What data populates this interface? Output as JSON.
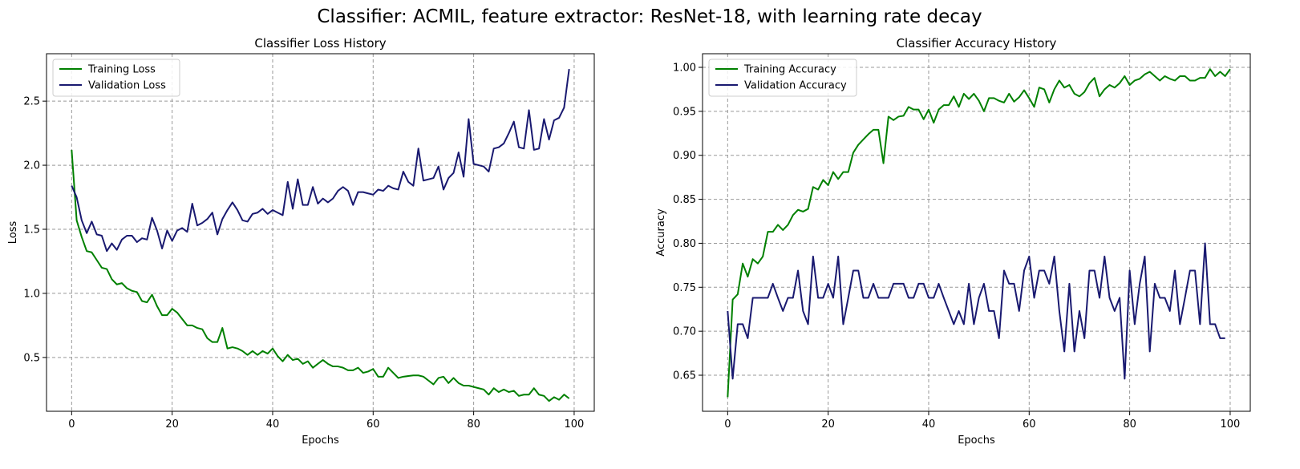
{
  "figure": {
    "suptitle": "Classifier: ACMIL, feature extractor: ResNet-18, with learning rate decay"
  },
  "colors": {
    "training": "#008000",
    "validation": "#191970",
    "grid": "#999999"
  },
  "chart_data": [
    {
      "type": "line",
      "title": "Classifier Loss History",
      "xlabel": "Epochs",
      "ylabel": "Loss",
      "xlim": [
        -5,
        104
      ],
      "ylim": [
        0.08,
        2.87
      ],
      "xticks": [
        0,
        20,
        40,
        60,
        80,
        100
      ],
      "yticks": [
        0.5,
        1.0,
        1.5,
        2.0,
        2.5
      ],
      "ytick_labels": [
        "0.5",
        "1.0",
        "1.5",
        "2.0",
        "2.5"
      ],
      "grid": true,
      "legend_position": "upper left",
      "series": [
        {
          "name": "Training Loss",
          "color": "#008000",
          "values": [
            2.12,
            1.57,
            1.44,
            1.33,
            1.32,
            1.26,
            1.2,
            1.19,
            1.11,
            1.07,
            1.08,
            1.04,
            1.02,
            1.01,
            0.94,
            0.93,
            0.99,
            0.9,
            0.83,
            0.83,
            0.88,
            0.85,
            0.8,
            0.75,
            0.75,
            0.73,
            0.72,
            0.65,
            0.62,
            0.62,
            0.73,
            0.57,
            0.58,
            0.57,
            0.55,
            0.52,
            0.55,
            0.52,
            0.55,
            0.53,
            0.57,
            0.51,
            0.47,
            0.52,
            0.48,
            0.49,
            0.45,
            0.47,
            0.42,
            0.45,
            0.48,
            0.45,
            0.43,
            0.43,
            0.42,
            0.4,
            0.4,
            0.42,
            0.38,
            0.39,
            0.41,
            0.35,
            0.35,
            0.42,
            0.38,
            0.34,
            0.35,
            0.355,
            0.36,
            0.36,
            0.35,
            0.32,
            0.29,
            0.34,
            0.35,
            0.3,
            0.34,
            0.3,
            0.28,
            0.28,
            0.27,
            0.26,
            0.25,
            0.21,
            0.26,
            0.23,
            0.25,
            0.23,
            0.24,
            0.2,
            0.21,
            0.21,
            0.26,
            0.21,
            0.2,
            0.16,
            0.19,
            0.17,
            0.21,
            0.18
          ]
        },
        {
          "name": "Validation Loss",
          "color": "#191970",
          "values": [
            1.84,
            1.75,
            1.57,
            1.47,
            1.56,
            1.46,
            1.45,
            1.33,
            1.39,
            1.34,
            1.42,
            1.45,
            1.45,
            1.4,
            1.43,
            1.42,
            1.59,
            1.49,
            1.35,
            1.49,
            1.41,
            1.49,
            1.51,
            1.48,
            1.7,
            1.53,
            1.55,
            1.58,
            1.63,
            1.46,
            1.58,
            1.65,
            1.71,
            1.65,
            1.57,
            1.56,
            1.62,
            1.63,
            1.66,
            1.62,
            1.65,
            1.63,
            1.61,
            1.87,
            1.66,
            1.89,
            1.69,
            1.69,
            1.83,
            1.7,
            1.74,
            1.71,
            1.74,
            1.8,
            1.83,
            1.8,
            1.69,
            1.79,
            1.79,
            1.78,
            1.77,
            1.81,
            1.8,
            1.84,
            1.82,
            1.81,
            1.95,
            1.87,
            1.84,
            2.13,
            1.88,
            1.89,
            1.9,
            1.99,
            1.81,
            1.9,
            1.94,
            2.1,
            1.91,
            2.36,
            2.01,
            2.0,
            1.99,
            1.95,
            2.13,
            2.14,
            2.17,
            2.25,
            2.34,
            2.14,
            2.13,
            2.43,
            2.12,
            2.13,
            2.36,
            2.2,
            2.35,
            2.37,
            2.45,
            2.75
          ]
        }
      ]
    },
    {
      "type": "line",
      "title": "Classifier Accuracy History",
      "xlabel": "Epochs",
      "ylabel": "Accuracy",
      "xlim": [
        -5,
        104
      ],
      "ylim": [
        0.609,
        1.0155
      ],
      "xticks": [
        0,
        20,
        40,
        60,
        80,
        100
      ],
      "yticks": [
        0.65,
        0.7,
        0.75,
        0.8,
        0.85,
        0.9,
        0.95,
        1.0
      ],
      "ytick_labels": [
        "0.65",
        "0.70",
        "0.75",
        "0.80",
        "0.85",
        "0.90",
        "0.95",
        "1.00"
      ],
      "grid": true,
      "legend_position": "upper left",
      "series": [
        {
          "name": "Training Accuracy",
          "color": "#008000",
          "values": [
            0.625,
            0.736,
            0.742,
            0.777,
            0.762,
            0.782,
            0.777,
            0.785,
            0.813,
            0.813,
            0.821,
            0.815,
            0.821,
            0.832,
            0.838,
            0.836,
            0.839,
            0.864,
            0.861,
            0.872,
            0.866,
            0.881,
            0.873,
            0.881,
            0.881,
            0.903,
            0.912,
            0.918,
            0.924,
            0.929,
            0.929,
            0.891,
            0.944,
            0.94,
            0.944,
            0.945,
            0.955,
            0.952,
            0.952,
            0.941,
            0.952,
            0.937,
            0.952,
            0.957,
            0.957,
            0.967,
            0.955,
            0.97,
            0.964,
            0.97,
            0.962,
            0.95,
            0.965,
            0.965,
            0.962,
            0.96,
            0.97,
            0.961,
            0.966,
            0.974,
            0.965,
            0.955,
            0.977,
            0.975,
            0.96,
            0.975,
            0.985,
            0.977,
            0.98,
            0.97,
            0.967,
            0.972,
            0.982,
            0.988,
            0.967,
            0.975,
            0.98,
            0.977,
            0.982,
            0.99,
            0.98,
            0.985,
            0.987,
            0.992,
            0.995,
            0.99,
            0.985,
            0.99,
            0.987,
            0.985,
            0.99,
            0.99,
            0.985,
            0.985,
            0.988,
            0.988,
            0.998,
            0.99,
            0.995,
            0.99,
            0.998
          ]
        },
        {
          "name": "Validation Accuracy",
          "color": "#191970",
          "values": [
            0.723,
            0.646,
            0.708,
            0.708,
            0.692,
            0.738,
            0.738,
            0.738,
            0.738,
            0.754,
            0.738,
            0.723,
            0.738,
            0.738,
            0.769,
            0.723,
            0.708,
            0.785,
            0.738,
            0.738,
            0.754,
            0.738,
            0.785,
            0.708,
            0.738,
            0.769,
            0.769,
            0.738,
            0.738,
            0.754,
            0.738,
            0.738,
            0.738,
            0.754,
            0.754,
            0.754,
            0.738,
            0.738,
            0.754,
            0.754,
            0.738,
            0.738,
            0.754,
            0.738,
            0.723,
            0.708,
            0.723,
            0.708,
            0.754,
            0.708,
            0.738,
            0.754,
            0.723,
            0.723,
            0.692,
            0.769,
            0.754,
            0.754,
            0.723,
            0.769,
            0.785,
            0.738,
            0.769,
            0.769,
            0.754,
            0.785,
            0.723,
            0.677,
            0.754,
            0.677,
            0.723,
            0.692,
            0.769,
            0.769,
            0.738,
            0.785,
            0.738,
            0.723,
            0.738,
            0.646,
            0.769,
            0.708,
            0.754,
            0.785,
            0.677,
            0.754,
            0.738,
            0.738,
            0.723,
            0.769,
            0.708,
            0.738,
            0.769,
            0.769,
            0.708,
            0.8,
            0.708,
            0.708,
            0.692,
            0.692
          ]
        }
      ]
    }
  ]
}
